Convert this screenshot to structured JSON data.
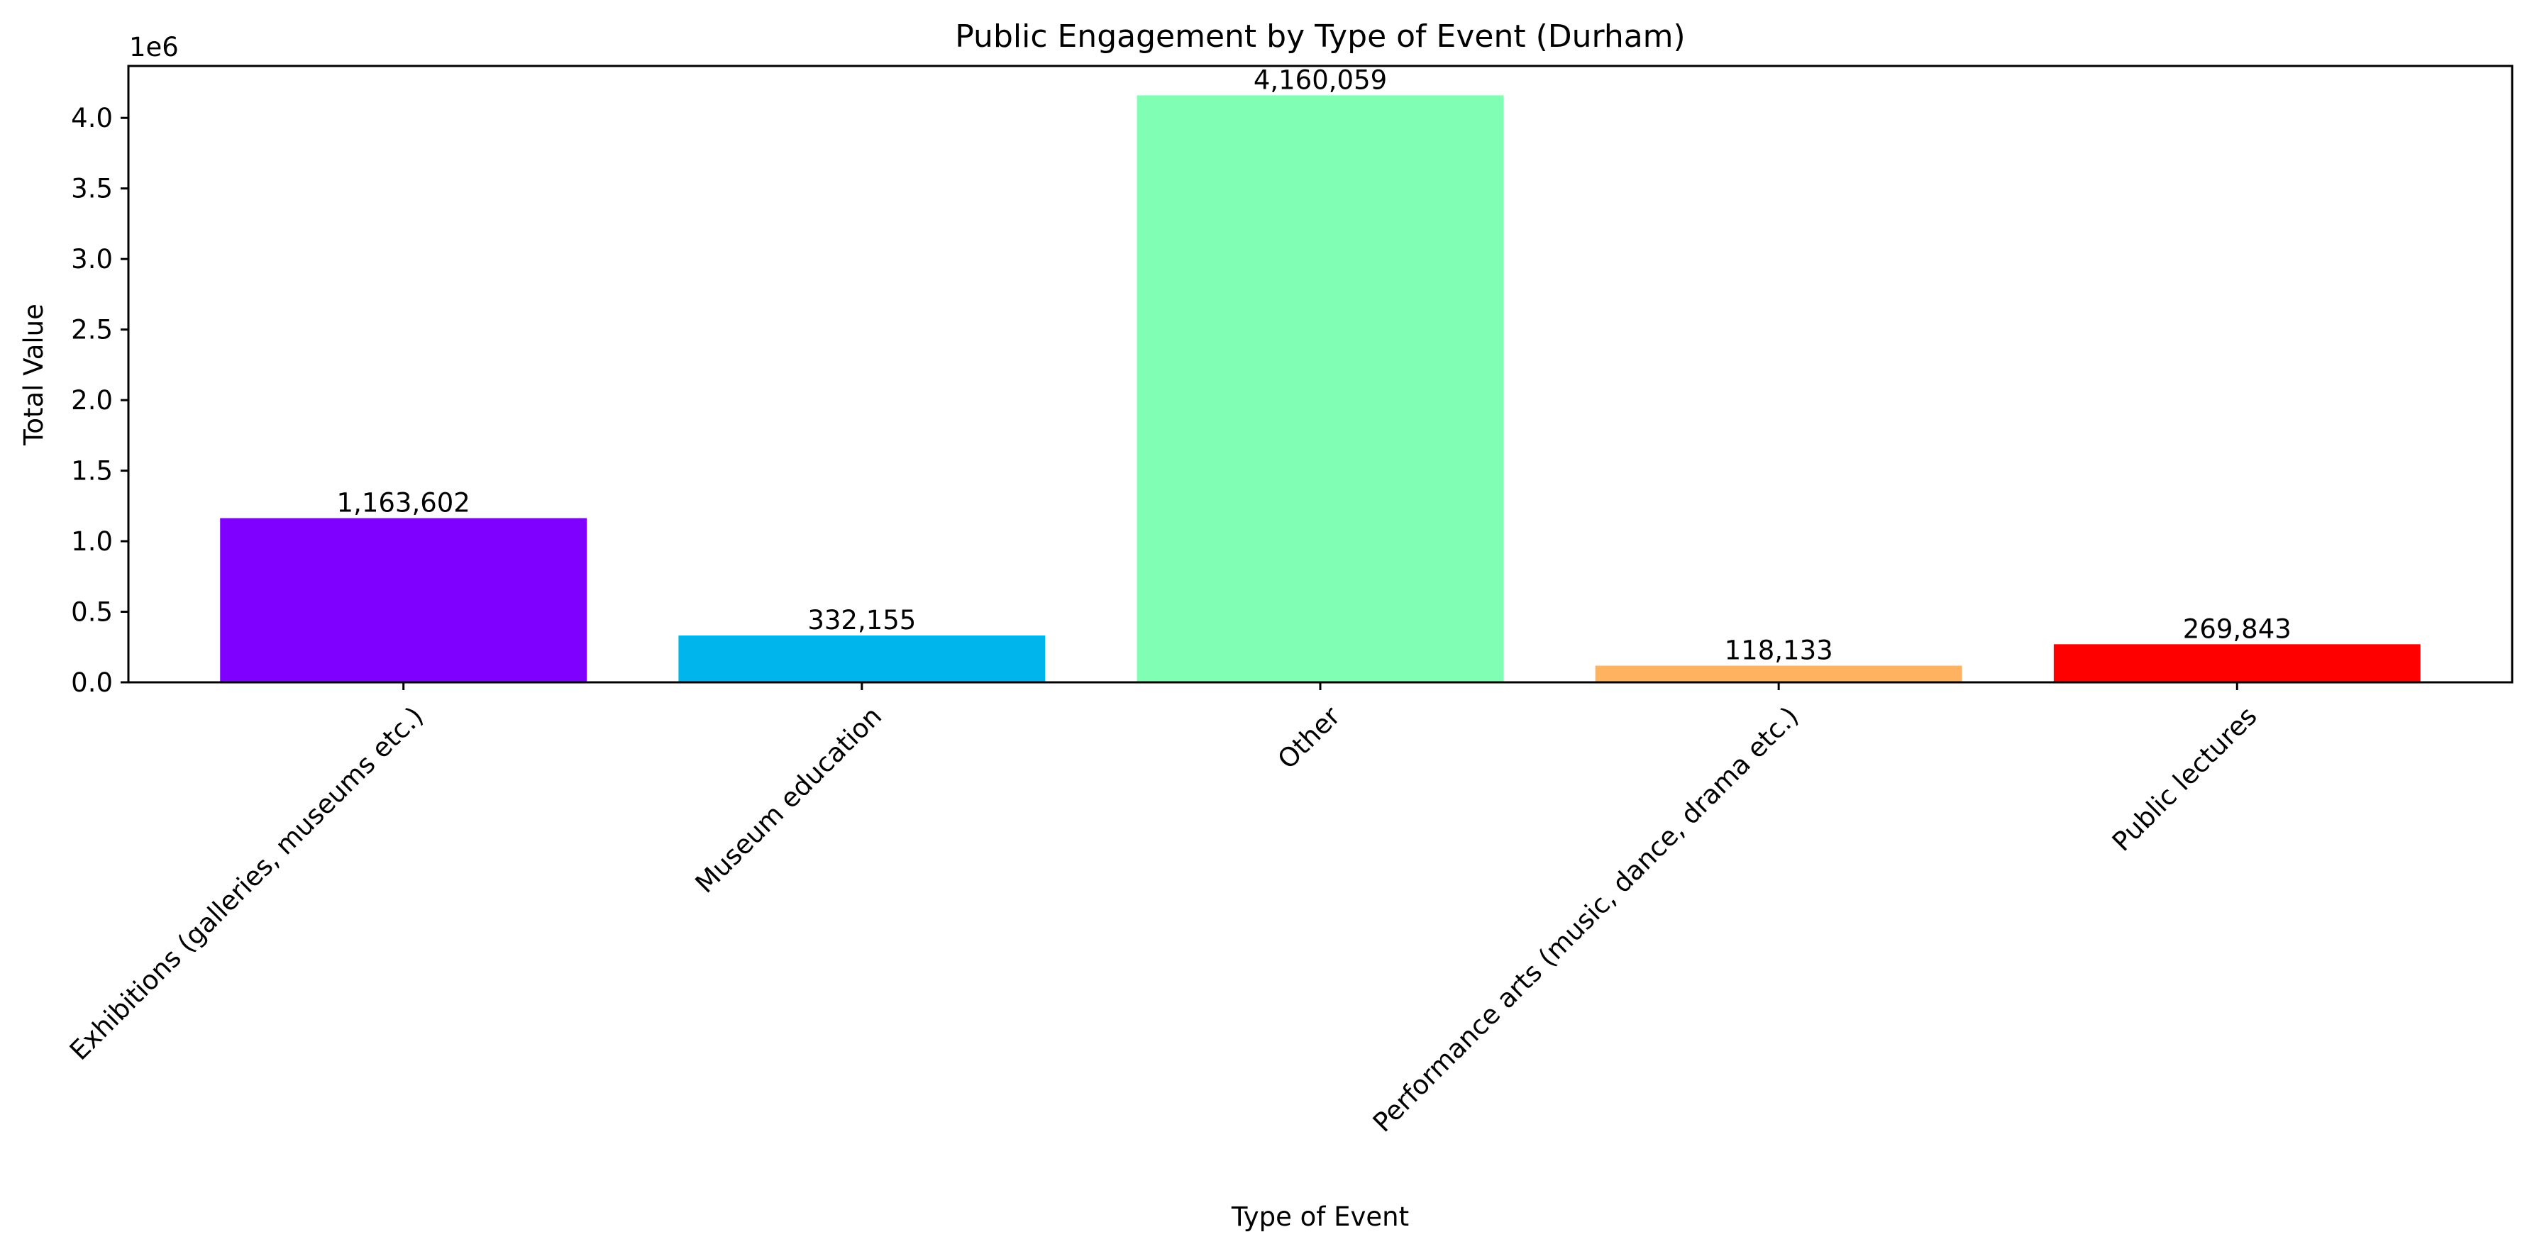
{
  "chart_data": {
    "type": "bar",
    "title": "Public Engagement by Type of Event (Durham)",
    "xlabel": "Type of Event",
    "ylabel": "Total Value",
    "y_offset_label": "1e6",
    "ylim": [
      0,
      4368062
    ],
    "y_ticks": [
      0,
      500000,
      1000000,
      1500000,
      2000000,
      2500000,
      3000000,
      3500000,
      4000000
    ],
    "y_tick_labels": [
      "0.0",
      "0.5",
      "1.0",
      "1.5",
      "2.0",
      "2.5",
      "3.0",
      "3.5",
      "4.0"
    ],
    "categories": [
      "Exhibitions (galleries, museums etc.)",
      "Museum education",
      "Other",
      "Performance arts (music, dance, drama etc.)",
      "Public lectures"
    ],
    "values": [
      1163602,
      332155,
      4160059,
      118133,
      269843
    ],
    "data_labels": [
      "1,163,602",
      "332,155",
      "4,160,059",
      "118,133",
      "269,843"
    ],
    "colors": [
      "#8000ff",
      "#00b5eb",
      "#80ffb4",
      "#ffb360",
      "#ff0000"
    ],
    "grid": false,
    "legend": "none"
  }
}
